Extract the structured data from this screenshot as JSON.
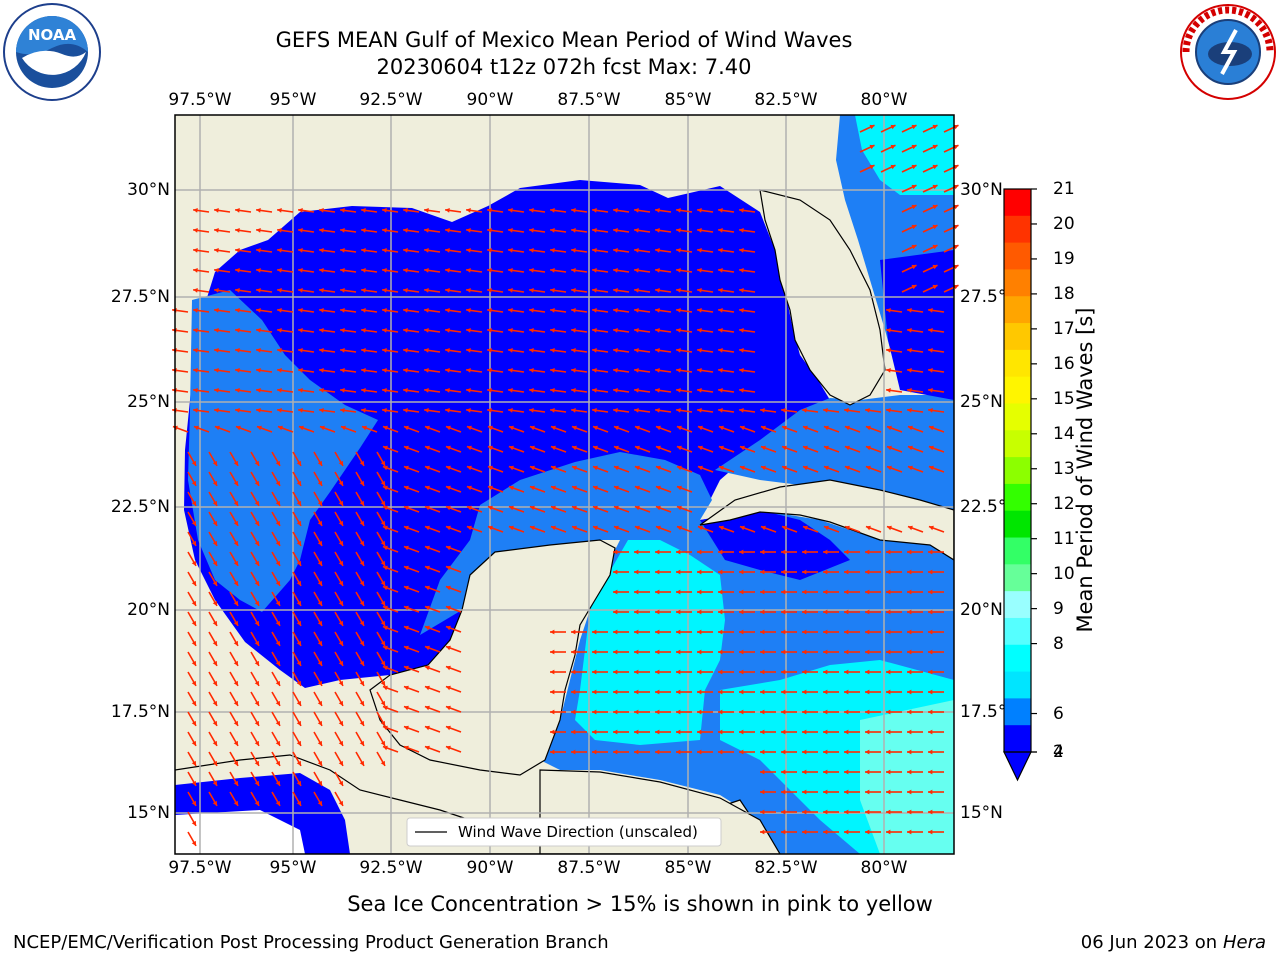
{
  "title": {
    "line1": "GEFS MEAN Gulf of Mexico Mean Period of Wind Waves",
    "line2": "20230604 t12z 072h fcst   Max: 7.40"
  },
  "map": {
    "lon_labels": [
      "97.5°W",
      "95°W",
      "92.5°W",
      "90°W",
      "87.5°W",
      "85°W",
      "82.5°W",
      "80°W"
    ],
    "lat_labels": [
      "30°N",
      "27.5°N",
      "25°N",
      "22.5°N",
      "20°N",
      "17.5°N",
      "15°N"
    ],
    "legend_label": "Wind Wave Direction (unscaled)",
    "colors": {
      "land": "#efeedc",
      "ocean_2_4": "#0000ff",
      "ocean_4_6": "#1e7ff5",
      "ocean_6_8": "#00f5ff",
      "ocean_8_9": "#66fff0",
      "arrow": "#ff2a00",
      "grid": "#b0b0b0"
    }
  },
  "colorbar": {
    "label": "Mean Period of Wind Waves [s]",
    "ticks": [
      "21",
      "20",
      "19",
      "18",
      "17",
      "16",
      "15",
      "14",
      "13",
      "12",
      "11",
      "10",
      "9",
      "8",
      "6",
      "4",
      "2"
    ],
    "colors": [
      "#ff0000",
      "#ff3300",
      "#ff5a00",
      "#ff8000",
      "#ffa500",
      "#ffc800",
      "#ffe600",
      "#fff500",
      "#e5ff00",
      "#c8ff00",
      "#8cff00",
      "#33ff00",
      "#00e600",
      "#33ff66",
      "#66ff99",
      "#99ffff",
      "#55ffff",
      "#00ffff",
      "#00e5ff",
      "#0080ff",
      "#0000ff"
    ]
  },
  "logos": {
    "noaa": "NOAA",
    "nws": "NATIONAL WEATHER SERVICE",
    "noaa_ring": "NATIONAL OCEANIC AND ATMOSPHERIC ADMINISTRATION"
  },
  "note": "Sea Ice Concentration > 15% is shown in pink to yellow",
  "footer": {
    "left": "NCEP/EMC/Verification Post Processing Product Generation Branch",
    "date": "06 Jun 2023 on",
    "machine": "Hera"
  }
}
